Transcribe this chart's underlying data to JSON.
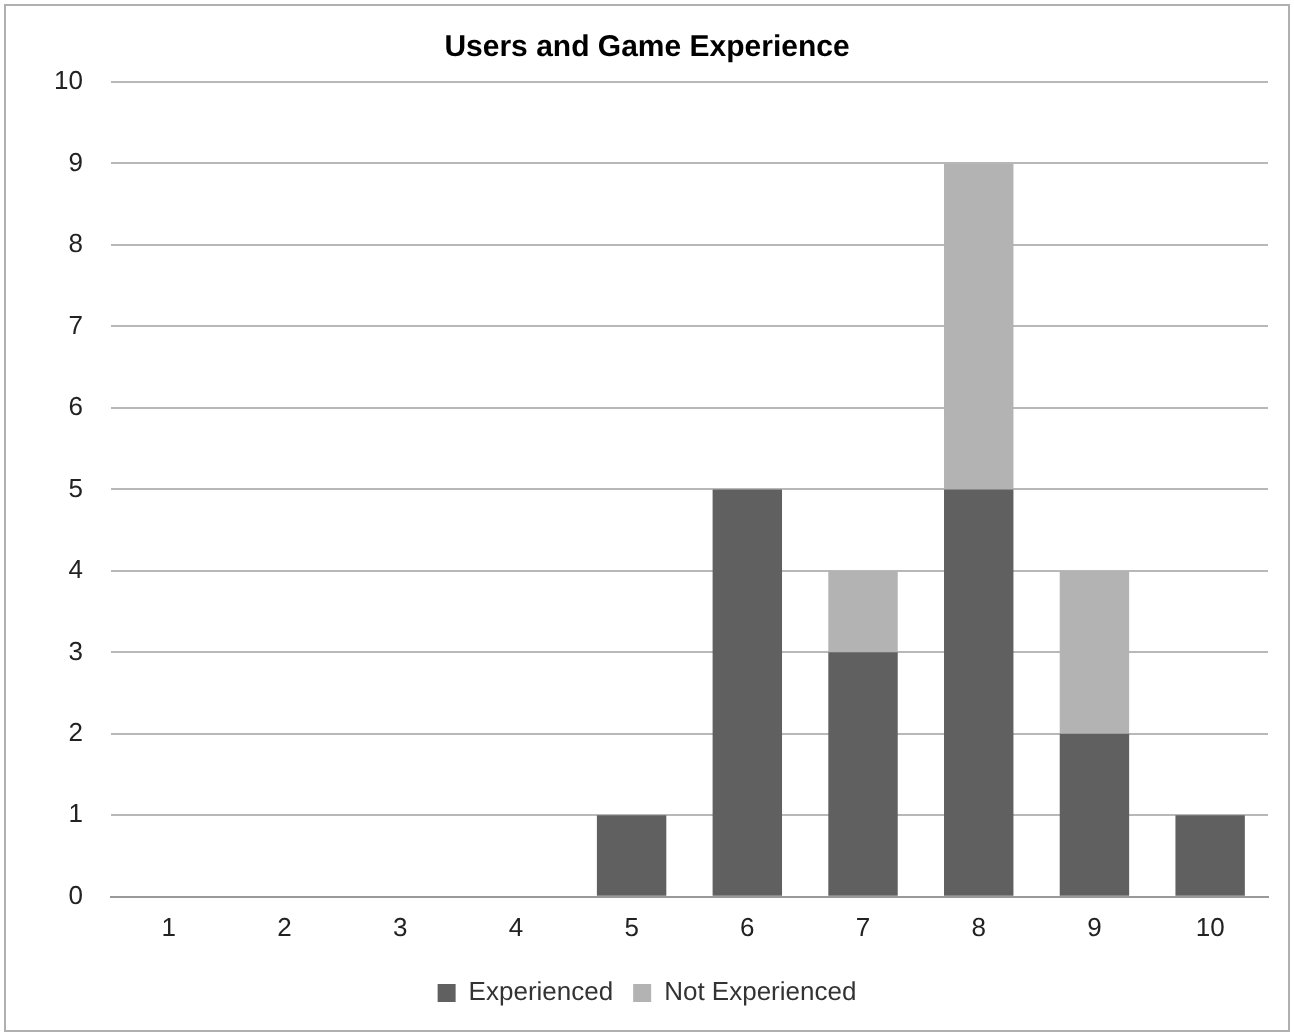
{
  "chart_data": {
    "type": "bar",
    "title": "Users and Game Experience",
    "categories": [
      "1",
      "2",
      "3",
      "4",
      "5",
      "6",
      "7",
      "8",
      "9",
      "10"
    ],
    "stacked": true,
    "series": [
      {
        "name": "Experienced",
        "color": "#606060",
        "values": [
          0,
          0,
          0,
          0,
          1,
          5,
          3,
          5,
          2,
          1
        ]
      },
      {
        "name": "Not Experienced",
        "color": "#b3b3b3",
        "values": [
          0,
          0,
          0,
          0,
          0,
          0,
          1,
          4,
          2,
          0
        ]
      }
    ],
    "ylim": [
      0,
      10
    ],
    "yticks": [
      0,
      1,
      2,
      3,
      4,
      5,
      6,
      7,
      8,
      9,
      10
    ],
    "grid": "y",
    "legend": "bottom"
  }
}
